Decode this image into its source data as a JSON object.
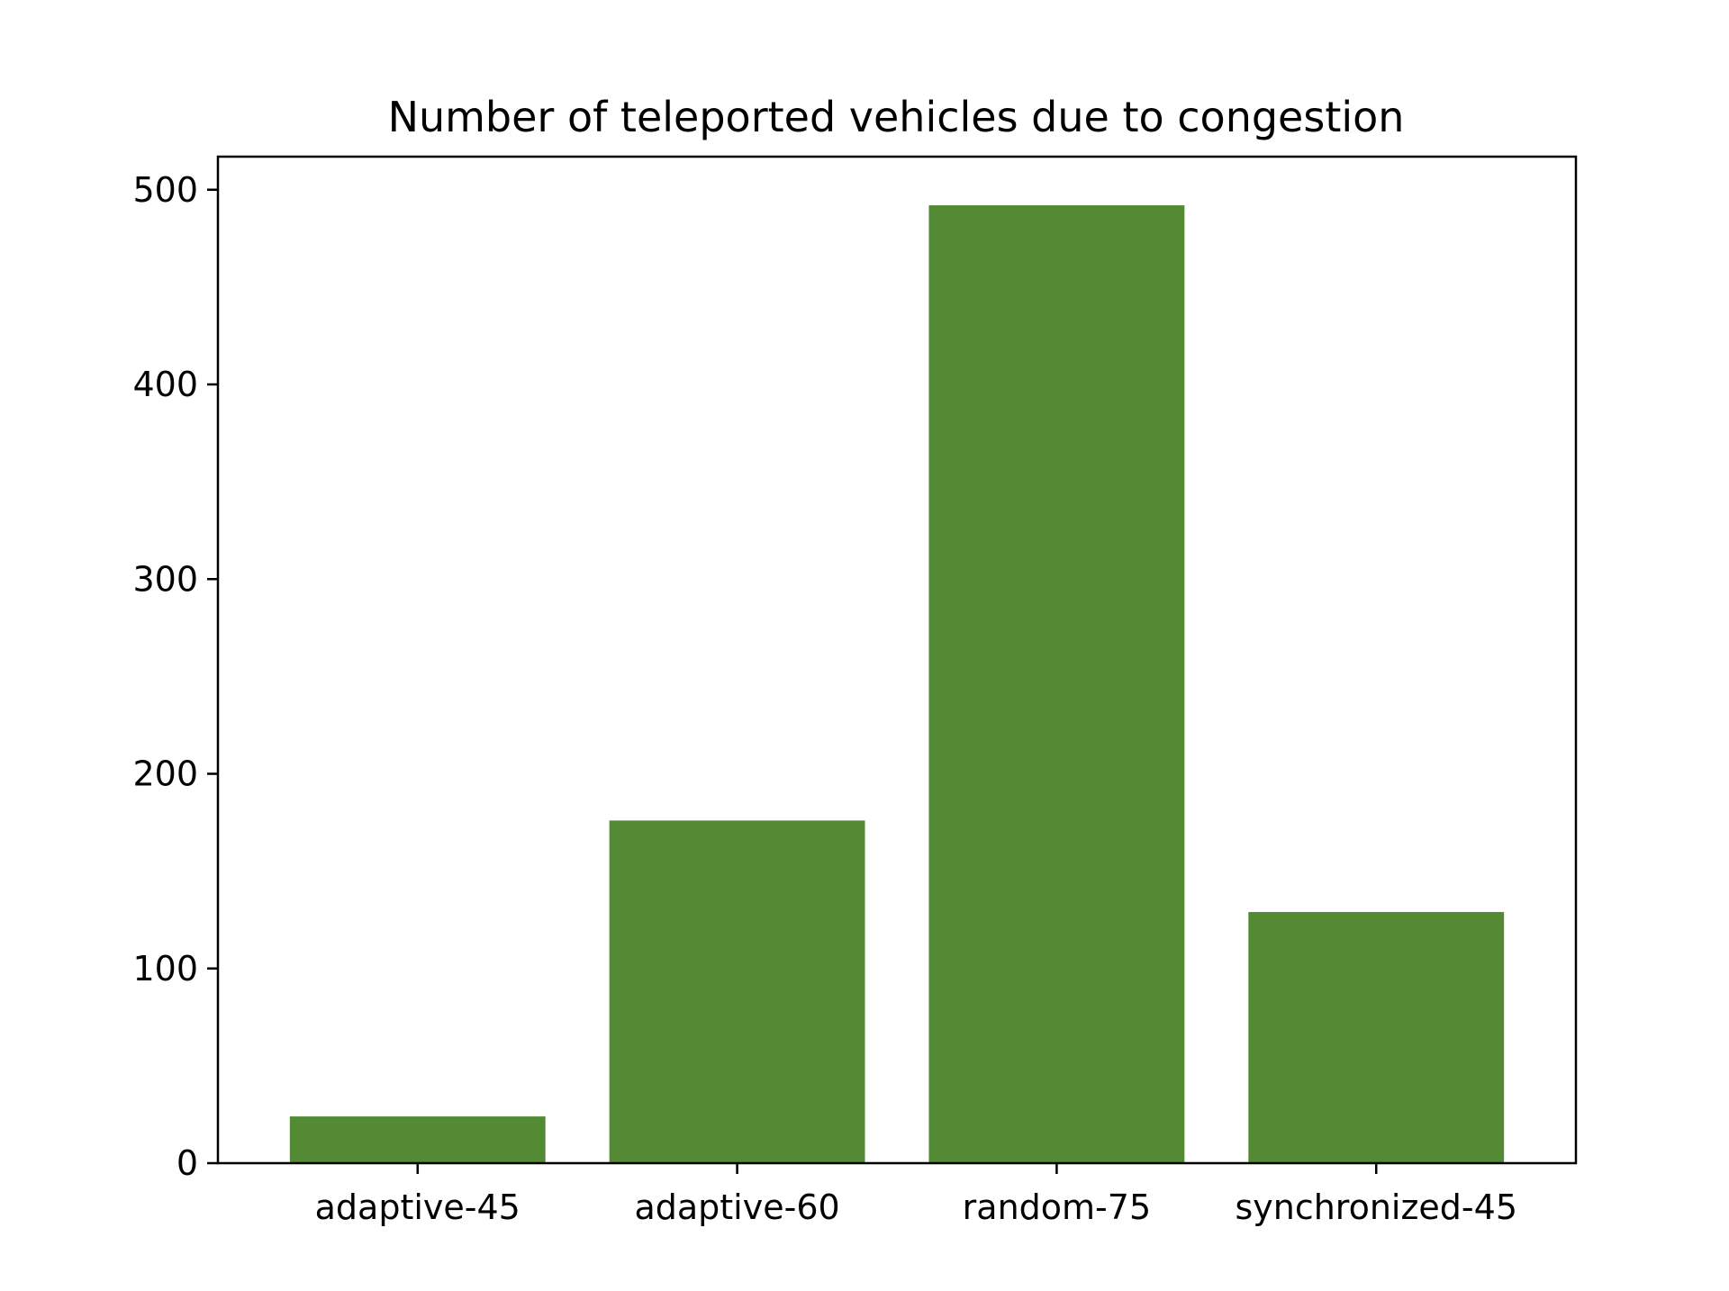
{
  "chart_data": {
    "type": "bar",
    "title": "Number of teleported vehicles due to congestion",
    "xlabel": "",
    "ylabel": "",
    "categories": [
      "adaptive-45",
      "adaptive-60",
      "random-75",
      "synchronized-45"
    ],
    "values": [
      24,
      176,
      492,
      129
    ],
    "ylim": [
      0,
      517
    ],
    "yticks": [
      0,
      100,
      200,
      300,
      400,
      500
    ],
    "grid": false,
    "legend": "none",
    "bar_color": "#548a33"
  }
}
